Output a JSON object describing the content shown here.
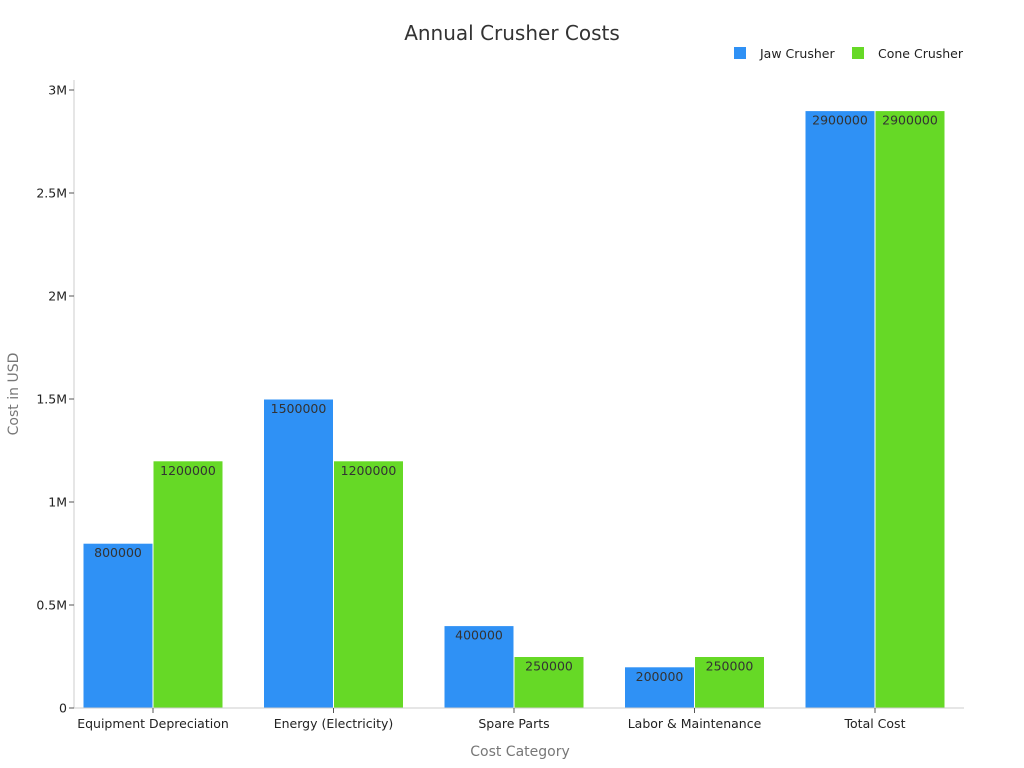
{
  "chart_data": {
    "type": "bar",
    "title": "Annual Crusher Costs",
    "xlabel": "Cost Category",
    "ylabel": "Cost in USD",
    "categories": [
      "Equipment Depreciation",
      "Energy (Electricity)",
      "Spare Parts",
      "Labor & Maintenance",
      "Total Cost"
    ],
    "series": [
      {
        "name": "Jaw Crusher",
        "color": "#2f91f5",
        "values": [
          800000,
          1500000,
          400000,
          200000,
          2900000
        ]
      },
      {
        "name": "Cone Crusher",
        "color": "#66d926",
        "values": [
          1200000,
          1200000,
          250000,
          250000,
          2900000
        ]
      }
    ],
    "ylim": [
      0,
      3000000
    ],
    "yticks": [
      {
        "value": 0,
        "label": "0"
      },
      {
        "value": 500000,
        "label": "0.5M"
      },
      {
        "value": 1000000,
        "label": "1M"
      },
      {
        "value": 1500000,
        "label": "1.5M"
      },
      {
        "value": 2000000,
        "label": "2M"
      },
      {
        "value": 2500000,
        "label": "2.5M"
      },
      {
        "value": 3000000,
        "label": "3M"
      }
    ],
    "legend_position": "top-right",
    "grid": false,
    "data_labels": true
  }
}
